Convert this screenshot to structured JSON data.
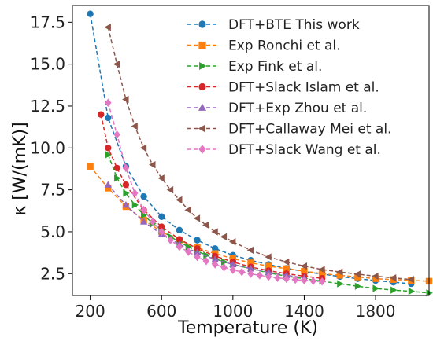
{
  "chart_data": {
    "type": "line",
    "title": "",
    "xlabel": "Temperature (K)",
    "ylabel": "κ [W/(mK)]",
    "xlim": [
      100,
      2100
    ],
    "ylim": [
      1.2,
      18.5
    ],
    "xticks": [
      200,
      600,
      1000,
      1400,
      1800
    ],
    "yticks": [
      2.5,
      5.0,
      7.5,
      10.0,
      12.5,
      15.0,
      17.5
    ],
    "xtick_labels": [
      "200",
      "600",
      "1000",
      "1400",
      "1800"
    ],
    "ytick_labels": [
      "2.5",
      "5.0",
      "7.5",
      "10.0",
      "12.5",
      "15.0",
      "17.5"
    ],
    "grid": false,
    "legend_position": "top-right",
    "series": [
      {
        "name": "DFT+BTE This work",
        "color": "#1f77b4",
        "marker": "circle",
        "x": [
          200,
          300,
          400,
          500,
          600,
          700,
          800,
          900,
          1000,
          1100,
          1200,
          1300,
          1400,
          1500,
          1600,
          1700,
          1800,
          1900,
          2000
        ],
        "y": [
          18.0,
          11.8,
          8.9,
          7.1,
          5.9,
          5.1,
          4.5,
          4.0,
          3.6,
          3.3,
          3.05,
          2.82,
          2.63,
          2.47,
          2.33,
          2.2,
          2.09,
          1.99,
          1.9
        ]
      },
      {
        "name": "Exp Ronchi et al.",
        "color": "#ff7f0e",
        "marker": "square",
        "x": [
          200,
          300,
          400,
          500,
          600,
          700,
          800,
          900,
          1000,
          1100,
          1200,
          1300,
          1400,
          1500,
          1600,
          1700,
          1800,
          1900,
          2000,
          2100
        ],
        "y": [
          8.9,
          7.6,
          6.5,
          5.7,
          5.0,
          4.5,
          4.05,
          3.7,
          3.4,
          3.15,
          2.95,
          2.8,
          2.65,
          2.5,
          2.4,
          2.3,
          2.2,
          2.15,
          2.1,
          2.05
        ]
      },
      {
        "name": "Exp Fink et al.",
        "color": "#2ca02c",
        "marker": "triangle-right",
        "x": [
          300,
          350,
          400,
          450,
          500,
          550,
          600,
          650,
          700,
          750,
          800,
          850,
          900,
          950,
          1000,
          1100,
          1200,
          1300,
          1400,
          1500,
          1600,
          1700,
          1800,
          1900,
          2000,
          2100
        ],
        "y": [
          9.6,
          8.2,
          7.3,
          6.6,
          6.0,
          5.5,
          5.1,
          4.7,
          4.4,
          4.1,
          3.85,
          3.6,
          3.4,
          3.2,
          3.05,
          2.8,
          2.55,
          2.35,
          2.2,
          2.05,
          1.9,
          1.75,
          1.62,
          1.52,
          1.45,
          1.35
        ]
      },
      {
        "name": "DFT+Slack Islam et al.",
        "color": "#d62728",
        "marker": "circle",
        "x": [
          260,
          300,
          350,
          400,
          500,
          600,
          700,
          800,
          900,
          1000,
          1100,
          1200,
          1300,
          1400,
          1500
        ],
        "y": [
          12.0,
          10.0,
          8.8,
          7.8,
          6.3,
          5.3,
          4.55,
          4.0,
          3.55,
          3.2,
          2.9,
          2.68,
          2.5,
          2.35,
          2.22
        ]
      },
      {
        "name": "DFT+Exp Zhou et al.",
        "color": "#9467bd",
        "marker": "triangle-up",
        "x": [
          300,
          400,
          500,
          600,
          700,
          800,
          900,
          1000,
          1100,
          1200,
          1300,
          1400
        ],
        "y": [
          7.8,
          6.6,
          5.6,
          4.85,
          4.25,
          3.75,
          3.35,
          3.05,
          2.8,
          2.58,
          2.4,
          2.25
        ]
      },
      {
        "name": "DFT+Callaway Mei et al.",
        "color": "#8c564b",
        "marker": "triangle-left",
        "x": [
          300,
          350,
          400,
          450,
          500,
          550,
          600,
          650,
          700,
          750,
          800,
          850,
          900,
          950,
          1000,
          1100,
          1200,
          1300,
          1400,
          1500,
          1600,
          1700,
          1800,
          1900,
          2000
        ],
        "y": [
          17.2,
          15.0,
          12.9,
          11.3,
          10.0,
          9.0,
          8.2,
          7.5,
          6.9,
          6.3,
          5.8,
          5.4,
          5.0,
          4.7,
          4.4,
          3.9,
          3.5,
          3.2,
          2.95,
          2.75,
          2.6,
          2.47,
          2.35,
          2.25,
          2.15
        ]
      },
      {
        "name": "DFT+Slack Wang et al.",
        "color": "#e377c2",
        "marker": "diamond",
        "x": [
          300,
          350,
          400,
          450,
          500,
          550,
          600,
          650,
          700,
          750,
          800,
          850,
          900,
          950,
          1000,
          1050,
          1100,
          1150,
          1200,
          1250,
          1300,
          1350,
          1400,
          1450,
          1500
        ],
        "y": [
          12.7,
          10.8,
          8.8,
          7.3,
          6.3,
          5.6,
          5.0,
          4.5,
          4.1,
          3.8,
          3.5,
          3.25,
          3.05,
          2.87,
          2.72,
          2.6,
          2.49,
          2.4,
          2.32,
          2.25,
          2.19,
          2.14,
          2.1,
          2.06,
          2.03
        ]
      }
    ]
  }
}
